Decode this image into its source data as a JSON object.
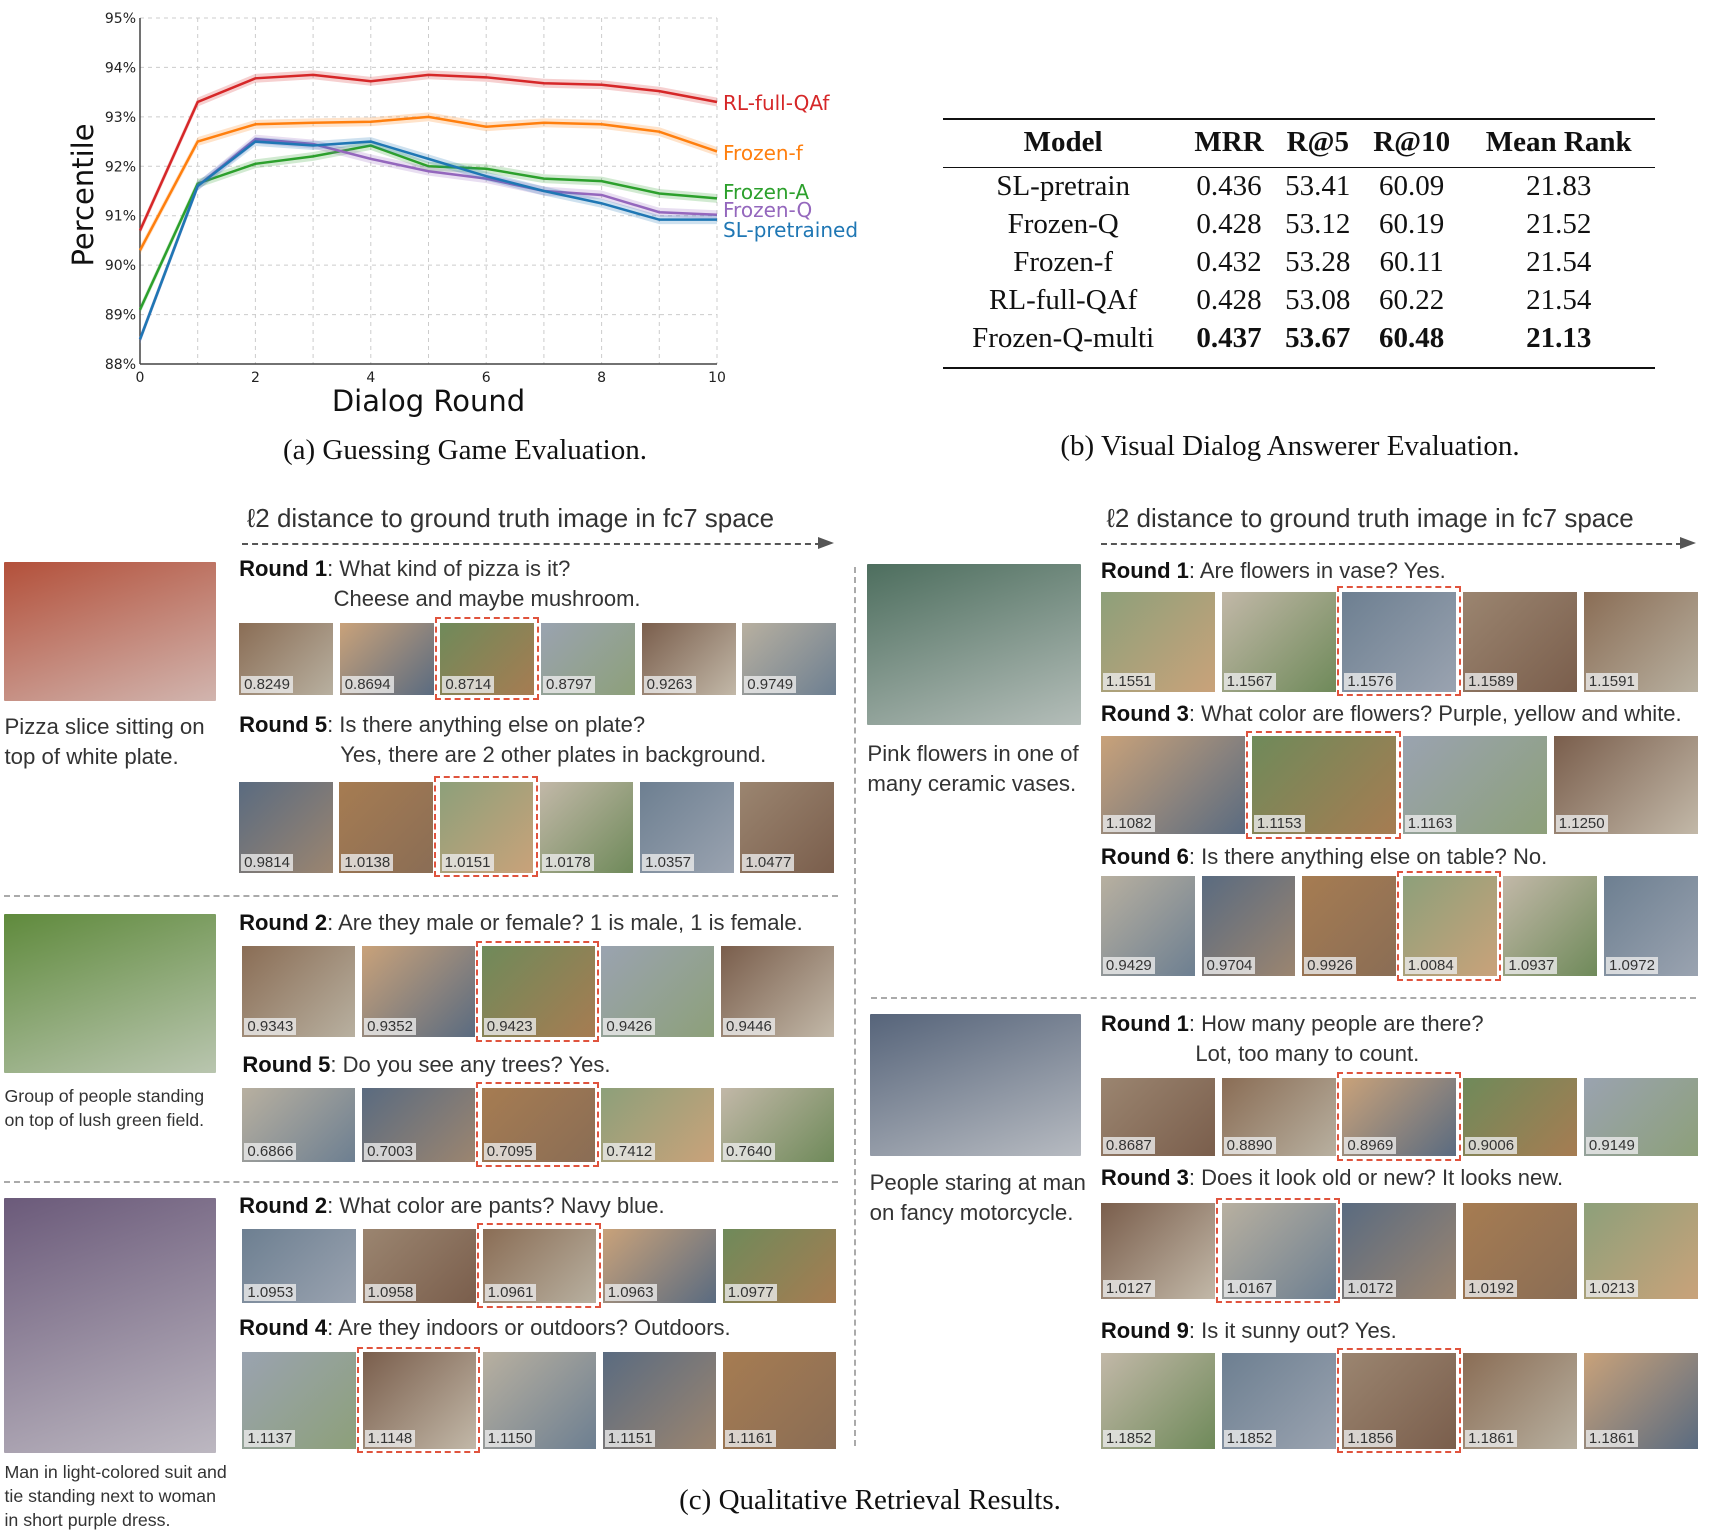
{
  "chart_data": {
    "type": "line",
    "title": "",
    "xlabel": "Dialog Round",
    "ylabel": "Percentile",
    "xlim": [
      0,
      10
    ],
    "ylim": [
      88,
      95
    ],
    "x_ticks": [
      "0",
      "2",
      "4",
      "6",
      "8",
      "10"
    ],
    "y_ticks": [
      "88%",
      "89%",
      "90%",
      "91%",
      "92%",
      "93%",
      "94%",
      "95%"
    ],
    "grid": true,
    "legend": "right, labels at line ends",
    "x": [
      0,
      1,
      2,
      3,
      4,
      5,
      6,
      7,
      8,
      9,
      10
    ],
    "series": [
      {
        "name": "RL-full-QAf",
        "color": "#d62728",
        "values": [
          90.7,
          93.3,
          93.78,
          93.85,
          93.72,
          93.85,
          93.8,
          93.68,
          93.65,
          93.52,
          93.3
        ]
      },
      {
        "name": "Frozen-f",
        "color": "#ff7f0e",
        "values": [
          90.3,
          92.5,
          92.85,
          92.88,
          92.9,
          93.0,
          92.8,
          92.88,
          92.85,
          92.7,
          92.3
        ]
      },
      {
        "name": "Frozen-A",
        "color": "#2ca02c",
        "values": [
          89.1,
          91.65,
          92.05,
          92.2,
          92.42,
          92.0,
          91.95,
          91.75,
          91.7,
          91.45,
          91.35
        ]
      },
      {
        "name": "Frozen-Q",
        "color": "#9467bd",
        "values": [
          88.5,
          91.6,
          92.55,
          92.45,
          92.15,
          91.9,
          91.75,
          91.5,
          91.42,
          91.07,
          91.02
        ]
      },
      {
        "name": "SL-pretrained",
        "color": "#1f77b4",
        "values": [
          88.5,
          91.6,
          92.5,
          92.42,
          92.5,
          92.15,
          91.8,
          91.5,
          91.25,
          90.92,
          90.92
        ]
      }
    ]
  },
  "captions": {
    "a": "(a) Guessing Game Evaluation.",
    "b": "(b) Visual Dialog Answerer Evaluation.",
    "c": "(c) Qualitative Retrieval Results."
  },
  "table": {
    "headers": [
      "Model",
      "MRR",
      "R@5",
      "R@10",
      "Mean Rank"
    ],
    "rows": [
      {
        "cells": [
          "SL-pretrain",
          "0.436",
          "53.41",
          "60.09",
          "21.83"
        ],
        "bold": false
      },
      {
        "cells": [
          "Frozen-Q",
          "0.428",
          "53.12",
          "60.19",
          "21.52"
        ],
        "bold": false
      },
      {
        "cells": [
          "Frozen-f",
          "0.432",
          "53.28",
          "60.11",
          "21.54"
        ],
        "bold": false
      },
      {
        "cells": [
          "RL-full-QAf",
          "0.428",
          "53.08",
          "60.22",
          "21.54"
        ],
        "bold": false
      },
      {
        "cells": [
          "Frozen-Q-multi",
          "0.437",
          "53.67",
          "60.48",
          "21.13"
        ],
        "bold": true
      }
    ]
  },
  "retrieval": {
    "axis_label": "ℓ2 distance to ground truth image in fc7 space",
    "groups": [
      {
        "caption": [
          "Pizza slice sitting on",
          "top of white plate."
        ],
        "rounds": [
          {
            "label": "Round 1",
            "question": ": What kind of pizza is it?",
            "answer": "Cheese and maybe mushroom.",
            "images": [
              {
                "d": "0.8249"
              },
              {
                "d": "0.8694"
              },
              {
                "d": "0.8714",
                "gt": true
              },
              {
                "d": "0.8797"
              },
              {
                "d": "0.9263"
              },
              {
                "d": "0.9749"
              }
            ]
          },
          {
            "label": "Round 5",
            "question": ": Is there anything else on plate?",
            "answer": "Yes, there are 2 other plates in background.",
            "images": [
              {
                "d": "0.9814"
              },
              {
                "d": "1.0138"
              },
              {
                "d": "1.0151",
                "gt": true
              },
              {
                "d": "1.0178"
              },
              {
                "d": "1.0357"
              },
              {
                "d": "1.0477"
              }
            ]
          }
        ]
      },
      {
        "caption": [
          "Group of people standing",
          "on top of lush green field."
        ],
        "rounds": [
          {
            "label": "Round 2",
            "question": ": Are they male or female? 1 is male, 1 is female.",
            "images": [
              {
                "d": "0.9343"
              },
              {
                "d": "0.9352"
              },
              {
                "d": "0.9423",
                "gt": true
              },
              {
                "d": "0.9426"
              },
              {
                "d": "0.9446"
              }
            ]
          },
          {
            "label": "Round 5",
            "question": ": Do you see any trees? Yes.",
            "images": [
              {
                "d": "0.6866"
              },
              {
                "d": "0.7003"
              },
              {
                "d": "0.7095",
                "gt": true
              },
              {
                "d": "0.7412"
              },
              {
                "d": "0.7640"
              }
            ]
          }
        ]
      },
      {
        "caption": [
          "Man in light-colored suit and",
          "tie standing next to woman",
          "in short purple dress."
        ],
        "rounds": [
          {
            "label": "Round 2",
            "question": ": What color are pants? Navy blue.",
            "images": [
              {
                "d": "1.0953"
              },
              {
                "d": "1.0958"
              },
              {
                "d": "1.0961",
                "gt": true
              },
              {
                "d": "1.0963"
              },
              {
                "d": "1.0977"
              }
            ]
          },
          {
            "label": "Round 4",
            "question": ": Are they indoors or outdoors? Outdoors.",
            "images": [
              {
                "d": "1.1137"
              },
              {
                "d": "1.1148",
                "gt": true
              },
              {
                "d": "1.1150"
              },
              {
                "d": "1.1151"
              },
              {
                "d": "1.1161"
              }
            ]
          }
        ]
      },
      {
        "caption": [
          "Pink flowers in one of",
          "many ceramic vases."
        ],
        "rounds": [
          {
            "label": "Round 1",
            "question": ": Are flowers in vase? Yes.",
            "images": [
              {
                "d": "1.1551"
              },
              {
                "d": "1.1567"
              },
              {
                "d": "1.1576",
                "gt": true
              },
              {
                "d": "1.1589"
              },
              {
                "d": "1.1591"
              }
            ]
          },
          {
            "label": "Round 3",
            "question": ": What color are flowers? Purple, yellow and white.",
            "images": [
              {
                "d": "1.1082"
              },
              {
                "d": "1.1153",
                "gt": true
              },
              {
                "d": "1.1163"
              },
              {
                "d": "1.1250"
              }
            ]
          },
          {
            "label": "Round 6",
            "question": ": Is there anything else on table? No.",
            "images": [
              {
                "d": "0.9429"
              },
              {
                "d": "0.9704"
              },
              {
                "d": "0.9926"
              },
              {
                "d": "1.0084",
                "gt": true
              },
              {
                "d": "1.0937"
              },
              {
                "d": "1.0972"
              }
            ]
          }
        ]
      },
      {
        "caption": [
          "People staring at man",
          "on fancy motorcycle."
        ],
        "rounds": [
          {
            "label": "Round 1",
            "question": ": How many people are there?",
            "answer": "Lot, too many to count.",
            "images": [
              {
                "d": "0.8687"
              },
              {
                "d": "0.8890"
              },
              {
                "d": "0.8969",
                "gt": true
              },
              {
                "d": "0.9006"
              },
              {
                "d": "0.9149"
              }
            ]
          },
          {
            "label": "Round 3",
            "question": ": Does it look old or new? It looks new.",
            "images": [
              {
                "d": "1.0127"
              },
              {
                "d": "1.0167",
                "gt": true
              },
              {
                "d": "1.0172"
              },
              {
                "d": "1.0192"
              },
              {
                "d": "1.0213"
              }
            ]
          },
          {
            "label": "Round 9",
            "question": ": Is it sunny out? Yes.",
            "images": [
              {
                "d": "1.1852"
              },
              {
                "d": "1.1852"
              },
              {
                "d": "1.1856",
                "gt": true
              },
              {
                "d": "1.1861"
              },
              {
                "d": "1.1861"
              }
            ]
          }
        ]
      }
    ]
  }
}
